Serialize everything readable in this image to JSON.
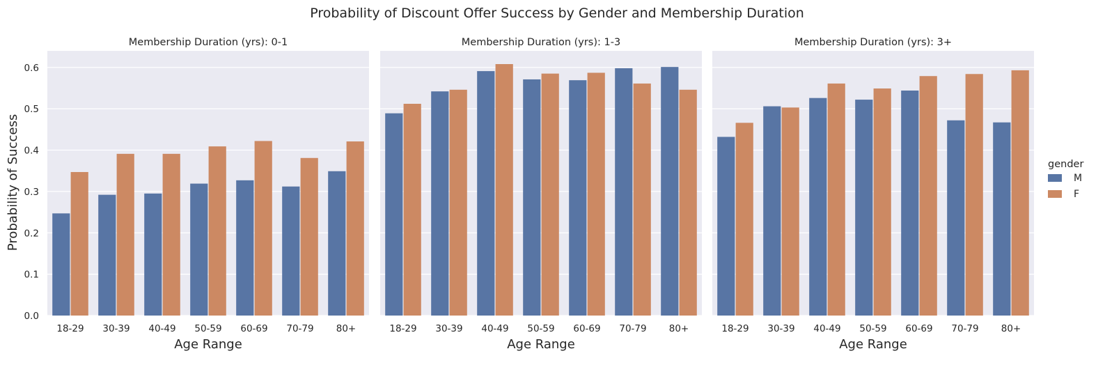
{
  "chart_data": {
    "type": "bar",
    "title": "Probability of Discount Offer Success by Gender and Membership Duration",
    "ylabel": "Probability of Success",
    "xlabel": "Age Range",
    "ylim": [
      0,
      0.64
    ],
    "yticks": [
      "0.0",
      "0.1",
      "0.2",
      "0.3",
      "0.4",
      "0.5",
      "0.6"
    ],
    "grid": true,
    "legend": {
      "title": "gender",
      "placement": "right",
      "entries": [
        {
          "label": "M",
          "color": "#5875a4"
        },
        {
          "label": "F",
          "color": "#cc8963"
        }
      ]
    },
    "categories": [
      "18-29",
      "30-39",
      "40-49",
      "50-59",
      "60-69",
      "70-79",
      "80+"
    ],
    "panels": [
      {
        "title": "Membership Duration (yrs): 0-1",
        "series": [
          {
            "name": "M",
            "values": [
              0.247,
              0.292,
              0.295,
              0.319,
              0.327,
              0.312,
              0.349
            ]
          },
          {
            "name": "F",
            "values": [
              0.347,
              0.391,
              0.391,
              0.409,
              0.422,
              0.381,
              0.421
            ]
          }
        ]
      },
      {
        "title": "Membership Duration (yrs): 1-3",
        "series": [
          {
            "name": "M",
            "values": [
              0.489,
              0.542,
              0.591,
              0.571,
              0.569,
              0.598,
              0.601
            ]
          },
          {
            "name": "F",
            "values": [
              0.512,
              0.546,
              0.608,
              0.585,
              0.587,
              0.561,
              0.546
            ]
          }
        ]
      },
      {
        "title": "Membership Duration (yrs): 3+",
        "series": [
          {
            "name": "M",
            "values": [
              0.432,
              0.506,
              0.526,
              0.522,
              0.544,
              0.472,
              0.467
            ]
          },
          {
            "name": "F",
            "values": [
              0.466,
              0.503,
              0.561,
              0.549,
              0.579,
              0.584,
              0.593
            ]
          }
        ]
      }
    ]
  },
  "colors": {
    "background": "#eaeaf2",
    "grid": "#ffffff",
    "male": "#5875a4",
    "female": "#cc8963"
  }
}
